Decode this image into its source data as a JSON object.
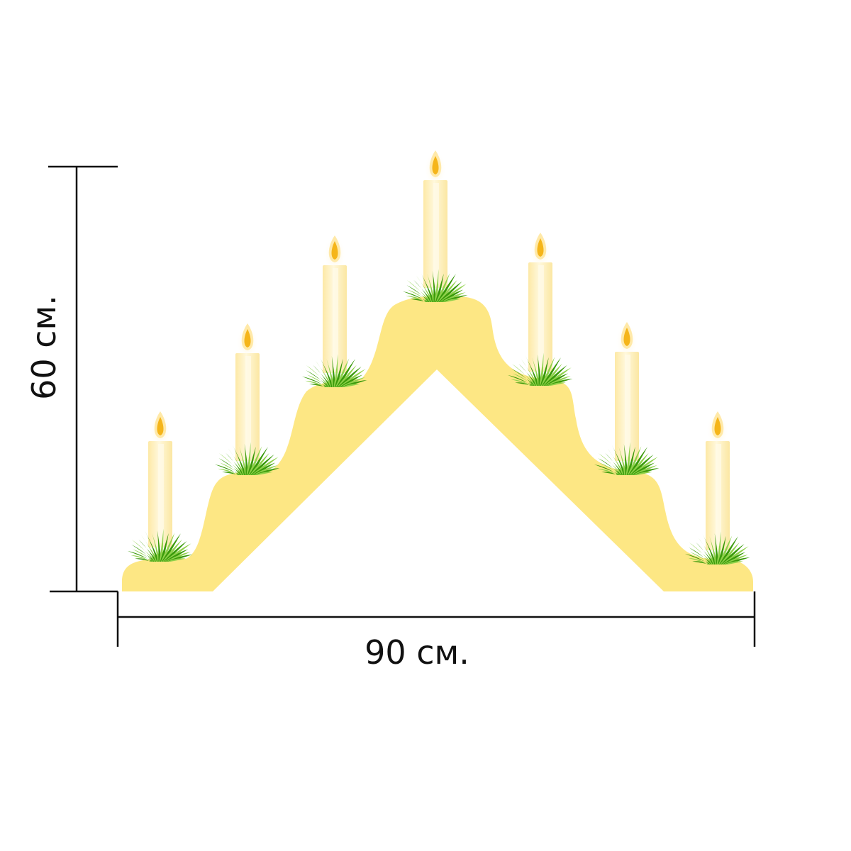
{
  "dimensions": {
    "height_label": "60 см.",
    "width_label": "90 см."
  },
  "candle_arch": {
    "candle_count": 7
  },
  "colors": {
    "base": "#fde784",
    "candle_body": "#fff3c6",
    "candle_highlight": "#fffbea",
    "flame_outer": "#ffe9a8",
    "flame_inner": "#f5b51a",
    "grass_dark": "#3a9a0a",
    "grass_light": "#8fd14a",
    "dimension_line": "#111111"
  }
}
